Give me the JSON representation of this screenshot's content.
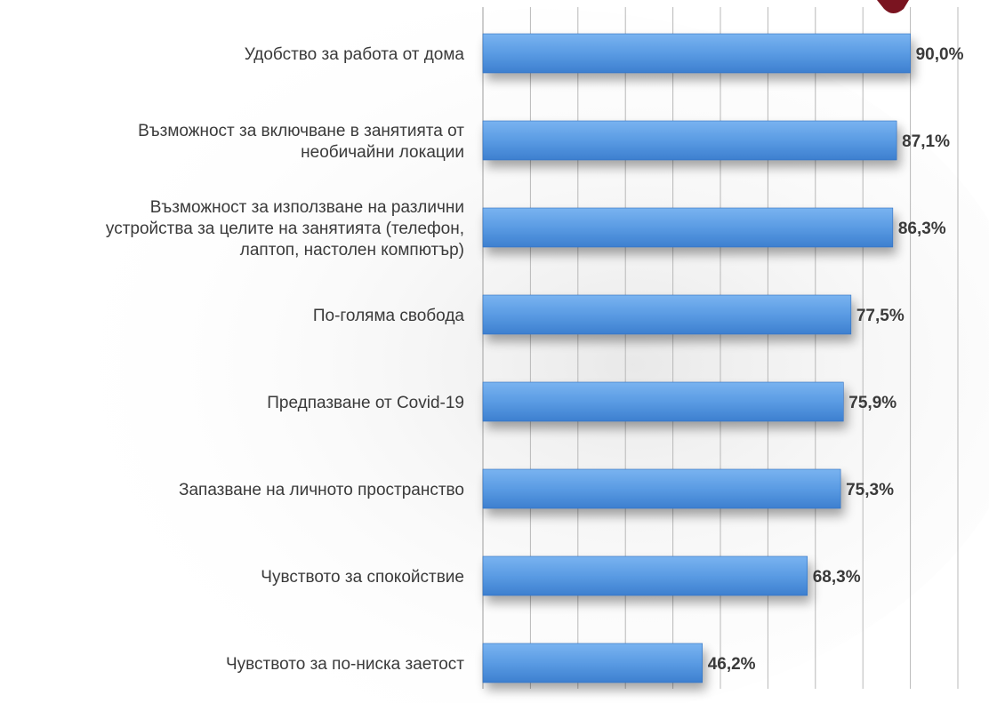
{
  "chart_data": {
    "type": "bar",
    "orientation": "horizontal",
    "categories": [
      [
        "Удобство за работа от дома"
      ],
      [
        "Възможност за включване в занятията от",
        "необичайни локации"
      ],
      [
        "Възможност за използване на различни",
        "устройства за целите на занятията (телефон,",
        "лаптоп, настолен компютър)"
      ],
      [
        "По-голяма свобода"
      ],
      [
        "Предпазване от Covid-19"
      ],
      [
        "Запазване на личното пространство"
      ],
      [
        "Чувството за спокойствие"
      ],
      [
        "Чувството за по-ниска заетост"
      ]
    ],
    "values": [
      90.0,
      87.1,
      86.3,
      77.5,
      75.9,
      75.3,
      68.3,
      46.2
    ],
    "value_labels": [
      "90,0%",
      "87,1%",
      "86,3%",
      "77,5%",
      "75,9%",
      "75,3%",
      "68,3%",
      "46,2%"
    ],
    "xlim": [
      0,
      100
    ],
    "grid": true,
    "bar_color": "#5a9be3",
    "bar_color_dark": "#2f6fc0",
    "grid_color": "#b8b8b8",
    "text_color": "#3a3a3a"
  }
}
